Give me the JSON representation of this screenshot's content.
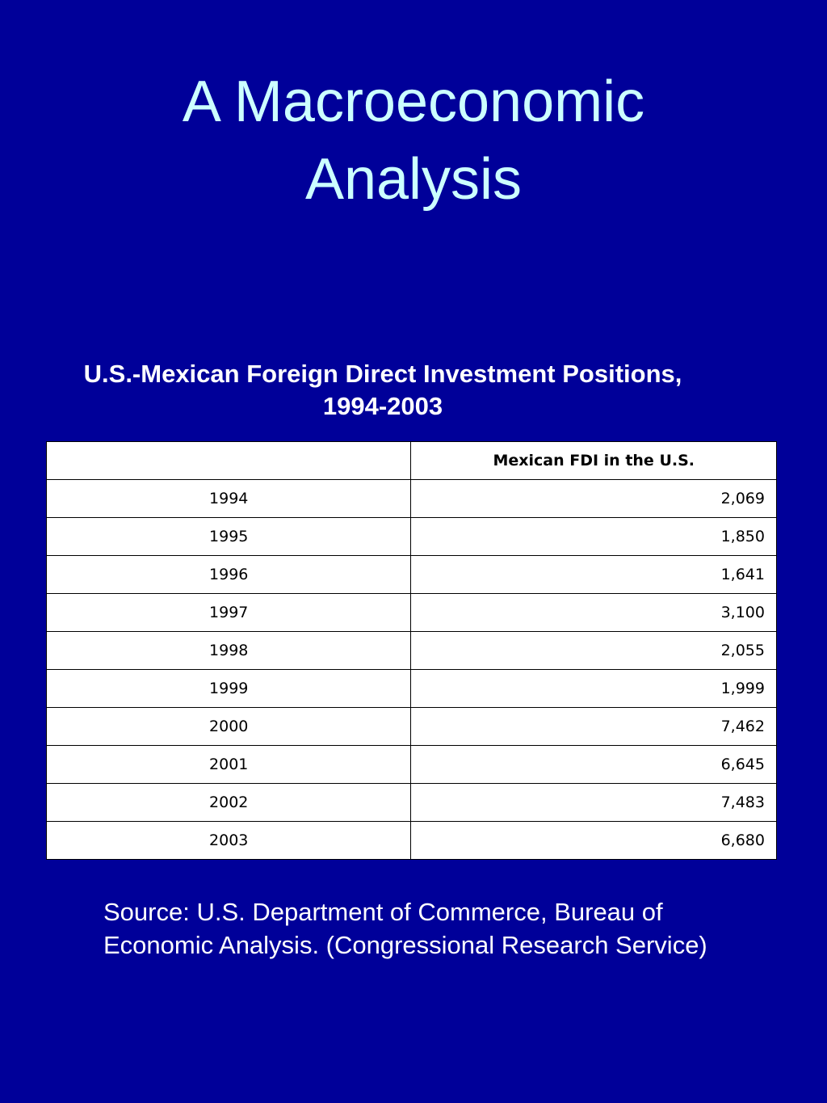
{
  "slide": {
    "title_line1": "A Macroeconomic",
    "title_line2": "Analysis"
  },
  "table": {
    "caption_line1": "U.S.-Mexican Foreign Direct Investment Positions,",
    "caption_line2": "1994-2003",
    "header": {
      "year": "",
      "value": "Mexican FDI in the U.S."
    },
    "rows": [
      {
        "year": "1994",
        "value": "2,069"
      },
      {
        "year": "1995",
        "value": "1,850"
      },
      {
        "year": "1996",
        "value": "1,641"
      },
      {
        "year": "1997",
        "value": "3,100"
      },
      {
        "year": "1998",
        "value": "2,055"
      },
      {
        "year": "1999",
        "value": "1,999"
      },
      {
        "year": "2000",
        "value": "7,462"
      },
      {
        "year": "2001",
        "value": "6,645"
      },
      {
        "year": "2002",
        "value": "7,483"
      },
      {
        "year": "2003",
        "value": "6,680"
      }
    ]
  },
  "source": {
    "text": "Source: U.S. Department of Commerce, Bureau of Economic Analysis. (Congressional Research Service)"
  },
  "colors": {
    "background": "#000099",
    "title": "#ccffff",
    "text": "#ffffff",
    "table_background": "#ffffff"
  }
}
